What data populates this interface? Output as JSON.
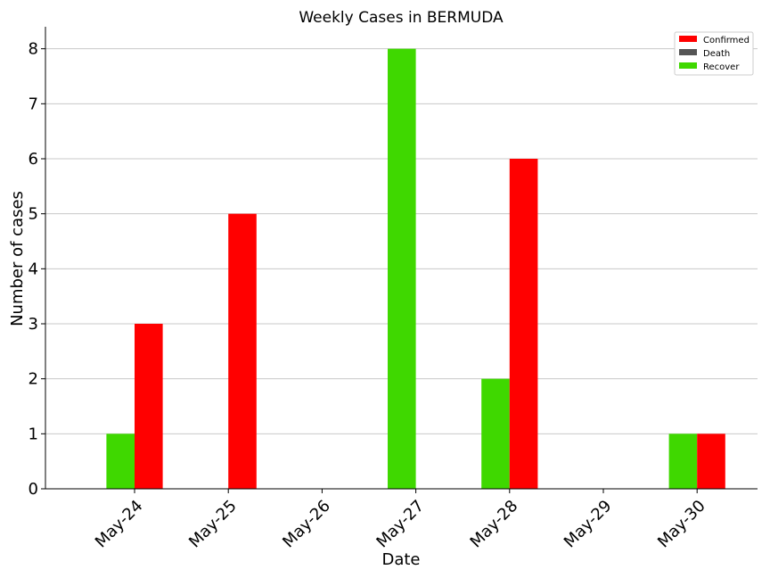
{
  "chart_data": {
    "type": "bar",
    "title": "Weekly Cases in BERMUDA",
    "xlabel": "Date",
    "ylabel": "Number of cases",
    "categories": [
      "May-24",
      "May-25",
      "May-26",
      "May-27",
      "May-28",
      "May-29",
      "May-30"
    ],
    "series": [
      {
        "name": "Confirmed",
        "color": "#ff0000",
        "values": [
          3,
          5,
          0,
          0,
          6,
          0,
          1
        ]
      },
      {
        "name": "Death",
        "color": "#555555",
        "values": [
          0,
          0,
          0,
          0,
          0,
          0,
          0
        ]
      },
      {
        "name": "Recover",
        "color": "#3fd800",
        "values": [
          1,
          0,
          0,
          8,
          2,
          0,
          1
        ]
      }
    ],
    "ylim": [
      0,
      8.4
    ],
    "yticks": [
      0,
      1,
      2,
      3,
      4,
      5,
      6,
      7,
      8
    ],
    "grid": "horizontal",
    "legend_position": "top-right"
  }
}
